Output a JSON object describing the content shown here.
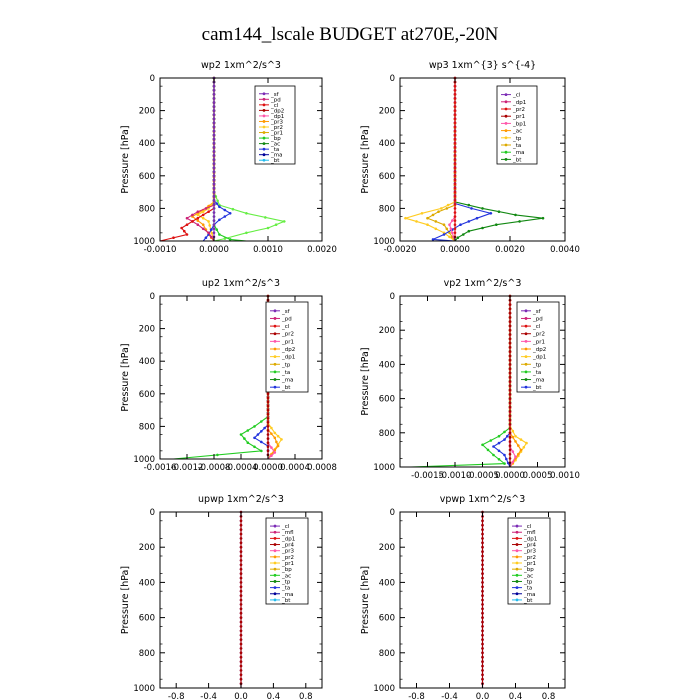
{
  "figure": {
    "title": "cam144_lscale  BUDGET at270E,-20N"
  },
  "colors": {
    "purple": "#7b2bb5",
    "magenta": "#cc2277",
    "red": "#dd1111",
    "darkred": "#aa0000",
    "pink": "#ff55aa",
    "orange": "#ff9900",
    "yellow": "#ffcc22",
    "gold": "#ddaa00",
    "green": "#22cc22",
    "lgreen": "#66ee44",
    "dgreen": "#118811",
    "blue": "#2233dd",
    "navy": "#000099",
    "cyan": "#22bbee",
    "black": "#000000"
  },
  "chart_data": [
    {
      "type": "line",
      "title": "wp2   1xm^2/s^3",
      "ylabel": "Pressure  [hPa]",
      "xlim": [
        -0.001,
        0.002
      ],
      "xticks": [
        -0.001,
        0.0,
        0.001,
        0.002
      ],
      "xtick_labels": [
        "-0.0010",
        "0.0000",
        "0.0010",
        "0.0020"
      ],
      "ylim": [
        1000,
        0
      ],
      "yticks": [
        0,
        200,
        400,
        600,
        800,
        1000
      ],
      "ytick_labels": [
        "0",
        "200",
        "400",
        "600",
        "800",
        "1000"
      ],
      "legend": [
        "_sf",
        "_pd",
        "_cl",
        "_dp2",
        "_dp1",
        "_pr3",
        "_pr2",
        "_pr1",
        "_bp",
        "_ac",
        "_ta",
        "_ma",
        "_bt"
      ],
      "series": [
        {
          "name": "_dp1",
          "color": "lgreen",
          "points": [
            [
              0,
              0
            ],
            [
              0,
              700
            ],
            [
              0.0001,
              780
            ],
            [
              0.0006,
              830
            ],
            [
              0.0013,
              880
            ],
            [
              0.001,
              920
            ],
            [
              0.0006,
              950
            ],
            [
              0.0002,
              985
            ],
            [
              0,
              1000
            ]
          ]
        },
        {
          "name": "_pr3",
          "color": "orange",
          "points": [
            [
              0,
              0
            ],
            [
              0,
              760
            ],
            [
              -0.0002,
              810
            ],
            [
              -0.0004,
              850
            ],
            [
              -0.0002,
              900
            ],
            [
              -0.0001,
              960
            ],
            [
              0,
              1000
            ]
          ]
        },
        {
          "name": "_pr2",
          "color": "yellow",
          "points": [
            [
              0,
              0
            ],
            [
              0,
              760
            ],
            [
              -0.0001,
              800
            ],
            [
              -0.0003,
              840
            ],
            [
              -0.0001,
              880
            ],
            [
              0,
              1000
            ]
          ]
        },
        {
          "name": "_bp",
          "color": "blue",
          "points": [
            [
              0,
              0
            ],
            [
              0,
              750
            ],
            [
              0.0001,
              790
            ],
            [
              0.0003,
              830
            ],
            [
              0.0001,
              870
            ],
            [
              0,
              900
            ],
            [
              -0.0001,
              960
            ],
            [
              -0.0002,
              1000
            ]
          ]
        },
        {
          "name": "_cl",
          "color": "magenta",
          "points": [
            [
              0,
              0
            ],
            [
              0,
              780
            ],
            [
              -0.0003,
              820
            ],
            [
              -0.0005,
              860
            ],
            [
              -0.0003,
              900
            ],
            [
              -0.0001,
              950
            ],
            [
              0,
              1000
            ]
          ]
        },
        {
          "name": "_pd",
          "color": "red",
          "points": [
            [
              0,
              0
            ],
            [
              0,
              800
            ],
            [
              -0.0002,
              840
            ],
            [
              -0.0004,
              880
            ],
            [
              -0.0006,
              920
            ],
            [
              -0.0005,
              960
            ],
            [
              -0.001,
              1000
            ]
          ]
        },
        {
          "name": "_dp2",
          "color": "green",
          "points": [
            [
              0,
              0
            ],
            [
              0,
              900
            ],
            [
              0.0001,
              960
            ],
            [
              0.0003,
              990
            ],
            [
              0.0006,
              1000
            ]
          ]
        },
        {
          "name": "_sf",
          "color": "purple",
          "points": [
            [
              0,
              0
            ],
            [
              0,
              1000
            ]
          ]
        }
      ]
    },
    {
      "type": "line",
      "title": "wp3   1xm^{3} s^{-4}",
      "ylabel": "Pressure  [hPa]",
      "xlim": [
        -0.002,
        0.004
      ],
      "xticks": [
        -0.002,
        0.0,
        0.002,
        0.004
      ],
      "xtick_labels": [
        "-0.0020",
        "0.0000",
        "0.0020",
        "0.0040"
      ],
      "ylim": [
        1000,
        0
      ],
      "yticks": [
        0,
        200,
        400,
        600,
        800,
        1000
      ],
      "ytick_labels": [
        "0",
        "200",
        "400",
        "600",
        "800",
        "1000"
      ],
      "legend": [
        "_cl",
        "_dp1",
        "_pr2",
        "_pr1",
        "_bp1",
        "_ac",
        "_tp",
        "_ta",
        "_ma",
        "_bt"
      ],
      "series": [
        {
          "name": "_ac",
          "color": "dgreen",
          "points": [
            [
              0,
              0
            ],
            [
              0,
              760
            ],
            [
              0.001,
              800
            ],
            [
              0.0022,
              840
            ],
            [
              0.0032,
              860
            ],
            [
              0.0015,
              900
            ],
            [
              0.0005,
              940
            ],
            [
              0.0001,
              980
            ],
            [
              0,
              1000
            ]
          ]
        },
        {
          "name": "_pr2",
          "color": "yellow",
          "points": [
            [
              0,
              0
            ],
            [
              0,
              760
            ],
            [
              -0.0005,
              800
            ],
            [
              -0.0012,
              830
            ],
            [
              -0.0018,
              860
            ],
            [
              -0.001,
              900
            ],
            [
              -0.0004,
              950
            ],
            [
              0,
              1000
            ]
          ]
        },
        {
          "name": "_pr1",
          "color": "gold",
          "points": [
            [
              0,
              0
            ],
            [
              0,
              780
            ],
            [
              -0.0006,
              820
            ],
            [
              -0.001,
              860
            ],
            [
              -0.0004,
              900
            ],
            [
              0,
              1000
            ]
          ]
        },
        {
          "name": "_tp",
          "color": "blue",
          "points": [
            [
              0,
              0
            ],
            [
              0,
              770
            ],
            [
              0.0006,
              800
            ],
            [
              0.0013,
              830
            ],
            [
              0.0008,
              860
            ],
            [
              0.0002,
              900
            ],
            [
              -0.0004,
              960
            ],
            [
              -0.0008,
              990
            ],
            [
              0,
              1000
            ]
          ]
        },
        {
          "name": "_dp1",
          "color": "pink",
          "points": [
            [
              0,
              0
            ],
            [
              0,
              850
            ],
            [
              -0.0002,
              900
            ],
            [
              0,
              1000
            ]
          ]
        },
        {
          "name": "_cl",
          "color": "red",
          "points": [
            [
              0,
              0
            ],
            [
              0,
              1000
            ]
          ]
        }
      ]
    },
    {
      "type": "line",
      "title": "up2   1xm^2/s^3",
      "ylabel": "Pressure  [hPa]",
      "xlim": [
        -0.0016,
        0.0008
      ],
      "xticks": [
        -0.0016,
        -0.0012,
        -0.0008,
        -0.0004,
        0.0,
        0.0004,
        0.0008
      ],
      "xtick_labels": [
        "-0.0016",
        "-0.0012",
        "-0.0008",
        "-0.0004",
        "0.0000",
        "0.0004",
        "0.0008"
      ],
      "ylim": [
        1000,
        0
      ],
      "yticks": [
        0,
        200,
        400,
        600,
        800,
        1000
      ],
      "ytick_labels": [
        "0",
        "200",
        "400",
        "600",
        "800",
        "1000"
      ],
      "legend": [
        "_sf",
        "_pd",
        "_cl",
        "_pr2",
        "_pr1",
        "_dp2",
        "_dp1",
        "_tp",
        "_ta",
        "_ma",
        "_bt"
      ],
      "series": [
        {
          "name": "_dp2",
          "color": "green",
          "points": [
            [
              0,
              0
            ],
            [
              0,
              740
            ],
            [
              -0.0002,
              800
            ],
            [
              -0.0004,
              850
            ],
            [
              -0.0003,
              900
            ],
            [
              -0.0001,
              950
            ],
            [
              -0.0014,
              1000
            ]
          ]
        },
        {
          "name": "_dp1",
          "color": "blue",
          "points": [
            [
              0,
              0
            ],
            [
              0,
              790
            ],
            [
              -0.0001,
              830
            ],
            [
              -0.0002,
              870
            ],
            [
              0,
              920
            ],
            [
              0,
              1000
            ]
          ]
        },
        {
          "name": "_pr2",
          "color": "yellow",
          "points": [
            [
              0,
              0
            ],
            [
              0,
              780
            ],
            [
              0.0001,
              840
            ],
            [
              0.0002,
              880
            ],
            [
              0.0001,
              940
            ],
            [
              0,
              1000
            ]
          ]
        },
        {
          "name": "_pr1",
          "color": "orange",
          "points": [
            [
              0,
              0
            ],
            [
              0,
              820
            ],
            [
              0.0001,
              870
            ],
            [
              0.00015,
              920
            ],
            [
              0,
              1000
            ]
          ]
        },
        {
          "name": "_cl",
          "color": "pink",
          "points": [
            [
              0,
              0
            ],
            [
              0,
              900
            ],
            [
              0.0001,
              960
            ],
            [
              0,
              1000
            ]
          ]
        },
        {
          "name": "_sf",
          "color": "darkred",
          "points": [
            [
              0,
              0
            ],
            [
              0,
              1000
            ]
          ]
        }
      ]
    },
    {
      "type": "line",
      "title": "vp2   1xm^2/s^3",
      "ylabel": "Pressure  [hPa]",
      "xlim": [
        -0.002,
        0.001
      ],
      "xticks": [
        -0.0015,
        -0.001,
        -0.0005,
        0.0,
        0.0005,
        0.001
      ],
      "xtick_labels": [
        "-0.0015",
        "-0.0010",
        "-0.0005",
        "0.0000",
        "0.0005",
        "0.0010"
      ],
      "ylim": [
        1000,
        0
      ],
      "yticks": [
        0,
        200,
        400,
        600,
        800,
        1000
      ],
      "ytick_labels": [
        "0",
        "200",
        "400",
        "600",
        "800",
        "1000"
      ],
      "legend": [
        "_sf",
        "_pd",
        "_cl",
        "_pr2",
        "_pr1",
        "_dp2",
        "_dp1",
        "_tp",
        "_ta",
        "_ma",
        "_bt"
      ],
      "series": [
        {
          "name": "_dp2",
          "color": "green",
          "points": [
            [
              0,
              0
            ],
            [
              0,
              770
            ],
            [
              -0.0002,
              820
            ],
            [
              -0.0005,
              870
            ],
            [
              -0.0003,
              930
            ],
            [
              -0.0001,
              980
            ],
            [
              -0.0018,
              1000
            ]
          ]
        },
        {
          "name": "_dp1",
          "color": "blue",
          "points": [
            [
              0,
              0
            ],
            [
              0,
              800
            ],
            [
              -0.0001,
              840
            ],
            [
              -0.0003,
              880
            ],
            [
              -0.0001,
              930
            ],
            [
              0,
              1000
            ]
          ]
        },
        {
          "name": "_pr2",
          "color": "yellow",
          "points": [
            [
              0,
              0
            ],
            [
              0,
              760
            ],
            [
              0.0001,
              820
            ],
            [
              0.0003,
              860
            ],
            [
              0.0002,
              910
            ],
            [
              0.0001,
              960
            ],
            [
              0,
              1000
            ]
          ]
        },
        {
          "name": "_pr1",
          "color": "orange",
          "points": [
            [
              0,
              0
            ],
            [
              0,
              800
            ],
            [
              0.0001,
              850
            ],
            [
              0.0002,
              900
            ],
            [
              0,
              1000
            ]
          ]
        },
        {
          "name": "_cl",
          "color": "pink",
          "points": [
            [
              0,
              0
            ],
            [
              0,
              880
            ],
            [
              0.0001,
              940
            ],
            [
              0,
              1000
            ]
          ]
        },
        {
          "name": "_sf",
          "color": "darkred",
          "points": [
            [
              0,
              0
            ],
            [
              0,
              1000
            ]
          ]
        }
      ]
    },
    {
      "type": "line",
      "title": "upwp   1xm^2/s^3",
      "ylabel": "Pressure  [hPa]",
      "xlim": [
        -1,
        1
      ],
      "xticks": [
        -0.8,
        -0.4,
        0,
        0.4,
        0.8
      ],
      "xtick_labels": [
        "-0.8",
        "-0.4",
        "0.0",
        "0.4",
        "0.8"
      ],
      "ylim": [
        1000,
        0
      ],
      "yticks": [
        0,
        200,
        400,
        600,
        800,
        1000
      ],
      "ytick_labels": [
        "0",
        "200",
        "400",
        "600",
        "800",
        "1000"
      ],
      "legend": [
        "_cl",
        "_mfl",
        "_dp1",
        "_pr4",
        "_pr3",
        "_pr2",
        "_pr1",
        "_bp",
        "_ac",
        "_tp",
        "_ta",
        "_ma",
        "_bt"
      ],
      "series": [
        {
          "name": "_cl",
          "color": "purple",
          "points": [
            [
              0,
              0
            ],
            [
              0,
              1000
            ]
          ]
        },
        {
          "name": "_mfl",
          "color": "darkred",
          "points": [
            [
              0,
              0
            ],
            [
              0,
              1000
            ]
          ]
        }
      ]
    },
    {
      "type": "line",
      "title": "vpwp   1xm^2/s^3",
      "ylabel": "Pressure  [hPa]",
      "xlim": [
        -1,
        1
      ],
      "xticks": [
        -0.8,
        -0.4,
        0,
        0.4,
        0.8
      ],
      "xtick_labels": [
        "-0.8",
        "-0.4",
        "0.0",
        "0.4",
        "0.8"
      ],
      "ylim": [
        1000,
        0
      ],
      "yticks": [
        0,
        200,
        400,
        600,
        800,
        1000
      ],
      "ytick_labels": [
        "0",
        "200",
        "400",
        "600",
        "800",
        "1000"
      ],
      "legend": [
        "_cl",
        "_mfl",
        "_dp1",
        "_pr4",
        "_pr3",
        "_pr2",
        "_pr1",
        "_bp",
        "_ac",
        "_tp",
        "_ta",
        "_ma",
        "_bt"
      ],
      "series": [
        {
          "name": "_cl",
          "color": "purple",
          "points": [
            [
              0,
              0
            ],
            [
              0,
              1000
            ]
          ]
        },
        {
          "name": "_mfl",
          "color": "darkred",
          "points": [
            [
              0,
              0
            ],
            [
              0,
              1000
            ]
          ]
        }
      ]
    }
  ]
}
